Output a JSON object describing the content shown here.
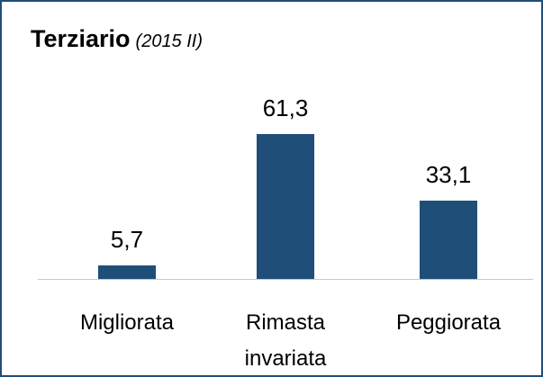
{
  "chart_data": {
    "type": "bar",
    "title": "Terziario",
    "subtitle": "(2015 II)",
    "categories": [
      "Migliorata",
      "Rimasta invariata",
      "Peggiorata"
    ],
    "values": [
      5.7,
      61.3,
      33.1
    ],
    "value_labels": [
      "5,7",
      "61,3",
      "33,1"
    ],
    "color": "#1f4e79"
  }
}
